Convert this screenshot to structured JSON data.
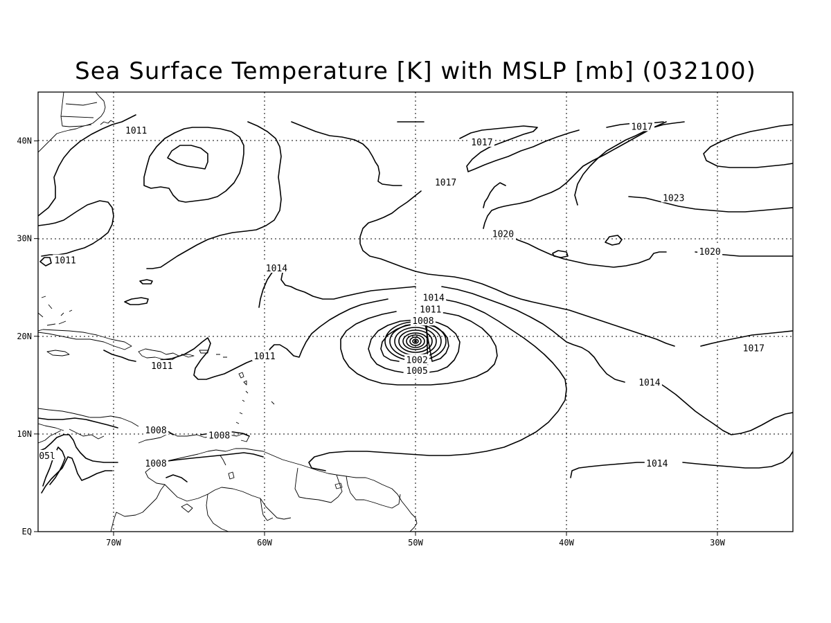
{
  "title": "Sea Surface Temperature [K] with MSLP [mb] (032100)",
  "map": {
    "lon_range": [
      -75,
      -25
    ],
    "lat_range": [
      0,
      45
    ],
    "x_ticks": [
      {
        "lon": -70,
        "label": "70W"
      },
      {
        "lon": -60,
        "label": "60W"
      },
      {
        "lon": -50,
        "label": "50W"
      },
      {
        "lon": -40,
        "label": "40W"
      },
      {
        "lon": -30,
        "label": "30W"
      }
    ],
    "y_ticks": [
      {
        "lat": 0,
        "label": "EQ"
      },
      {
        "lat": 10,
        "label": "10N"
      },
      {
        "lat": 20,
        "label": "20N"
      },
      {
        "lat": 30,
        "label": "30N"
      },
      {
        "lat": 40,
        "label": "40N"
      }
    ],
    "grid": "dotted",
    "contour_interval_mb": 3,
    "storm_center": {
      "lon": -50,
      "lat": 19.5
    },
    "contour_labels": [
      {
        "text": "1011",
        "lon": -68.5,
        "lat": 41.1
      },
      {
        "text": "1017",
        "lon": -48.0,
        "lat": 35.8
      },
      {
        "text": "1017",
        "lon": -35.0,
        "lat": 41.5
      },
      {
        "text": "1017",
        "lon": -45.6,
        "lat": 39.9
      },
      {
        "text": "1023",
        "lon": -32.9,
        "lat": 34.2
      },
      {
        "text": "1020",
        "lon": -44.2,
        "lat": 30.5
      },
      {
        "text": "1020",
        "lon": -30.5,
        "lat": 28.7
      },
      {
        "text": "1011",
        "lon": -73.2,
        "lat": 27.8
      },
      {
        "text": "1014",
        "lon": -59.2,
        "lat": 27.0
      },
      {
        "text": "1014",
        "lon": -48.8,
        "lat": 24.0
      },
      {
        "text": "1011",
        "lon": -49.0,
        "lat": 22.8
      },
      {
        "text": "1008",
        "lon": -49.5,
        "lat": 21.6
      },
      {
        "text": "1002",
        "lon": -49.9,
        "lat": 17.6
      },
      {
        "text": "1005",
        "lon": -49.9,
        "lat": 16.5
      },
      {
        "text": "1017",
        "lon": -27.6,
        "lat": 18.8
      },
      {
        "text": "1014",
        "lon": -34.5,
        "lat": 15.3
      },
      {
        "text": "1011",
        "lon": -66.8,
        "lat": 17.0
      },
      {
        "text": "1011",
        "lon": -60.0,
        "lat": 18.0
      },
      {
        "text": "1008",
        "lon": -67.2,
        "lat": 10.4
      },
      {
        "text": "1008",
        "lon": -63.0,
        "lat": 9.9
      },
      {
        "text": "1008",
        "lon": -67.2,
        "lat": 7.0
      },
      {
        "text": "1014",
        "lon": -34.0,
        "lat": 7.0
      },
      {
        "text": "05l",
        "lon": -74.4,
        "lat": 7.8
      }
    ]
  }
}
